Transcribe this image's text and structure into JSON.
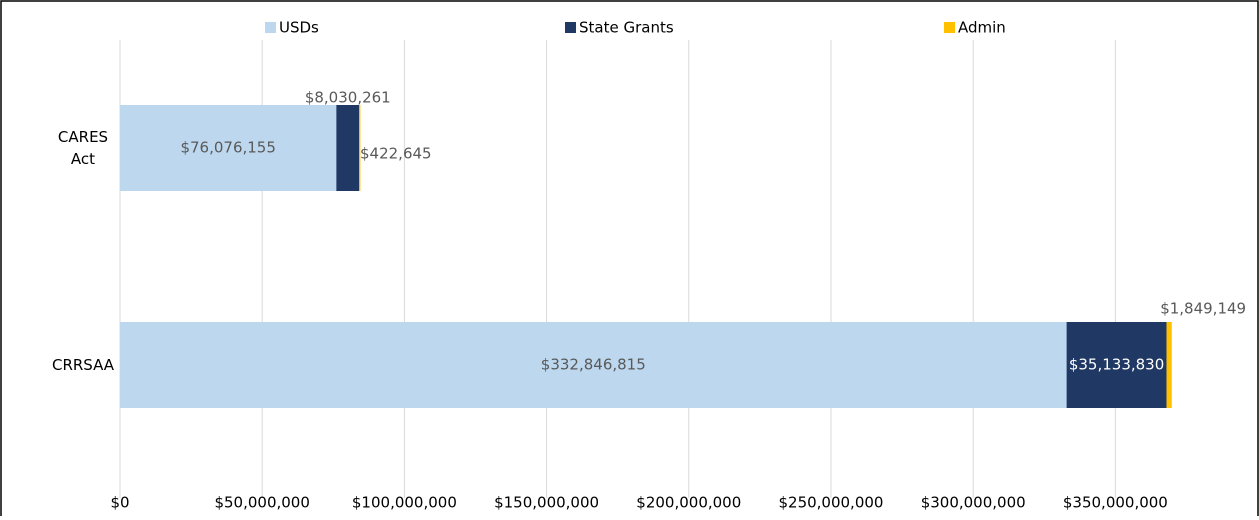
{
  "chart_data": {
    "type": "stacked-bar-horizontal",
    "categories": [
      "CARES Act",
      "CRRSAA"
    ],
    "series": [
      {
        "name": "USDs",
        "color": "#bdd7ee",
        "values": [
          76076155,
          332846815
        ],
        "value_labels": [
          "$76,076,155",
          "$332,846,815"
        ]
      },
      {
        "name": "State Grants",
        "color": "#203864",
        "values": [
          8030261,
          35133830
        ],
        "value_labels": [
          "$8,030,261",
          "$35,133,830"
        ]
      },
      {
        "name": "Admin",
        "color": "#ffc000",
        "values": [
          422645,
          1849149
        ],
        "value_labels": [
          "$422,645",
          "$1,849,149"
        ]
      }
    ],
    "xlim": [
      0,
      380000000
    ],
    "xticks": [
      {
        "value": 0,
        "label": "$0"
      },
      {
        "value": 50000000,
        "label": "$50,000,000"
      },
      {
        "value": 100000000,
        "label": "$100,000,000"
      },
      {
        "value": 150000000,
        "label": "$150,000,000"
      },
      {
        "value": 200000000,
        "label": "$200,000,000"
      },
      {
        "value": 250000000,
        "label": "$250,000,000"
      },
      {
        "value": 300000000,
        "label": "$300,000,000"
      },
      {
        "value": 350000000,
        "label": "$350,000,000"
      }
    ],
    "grid": true,
    "legend": "top"
  }
}
